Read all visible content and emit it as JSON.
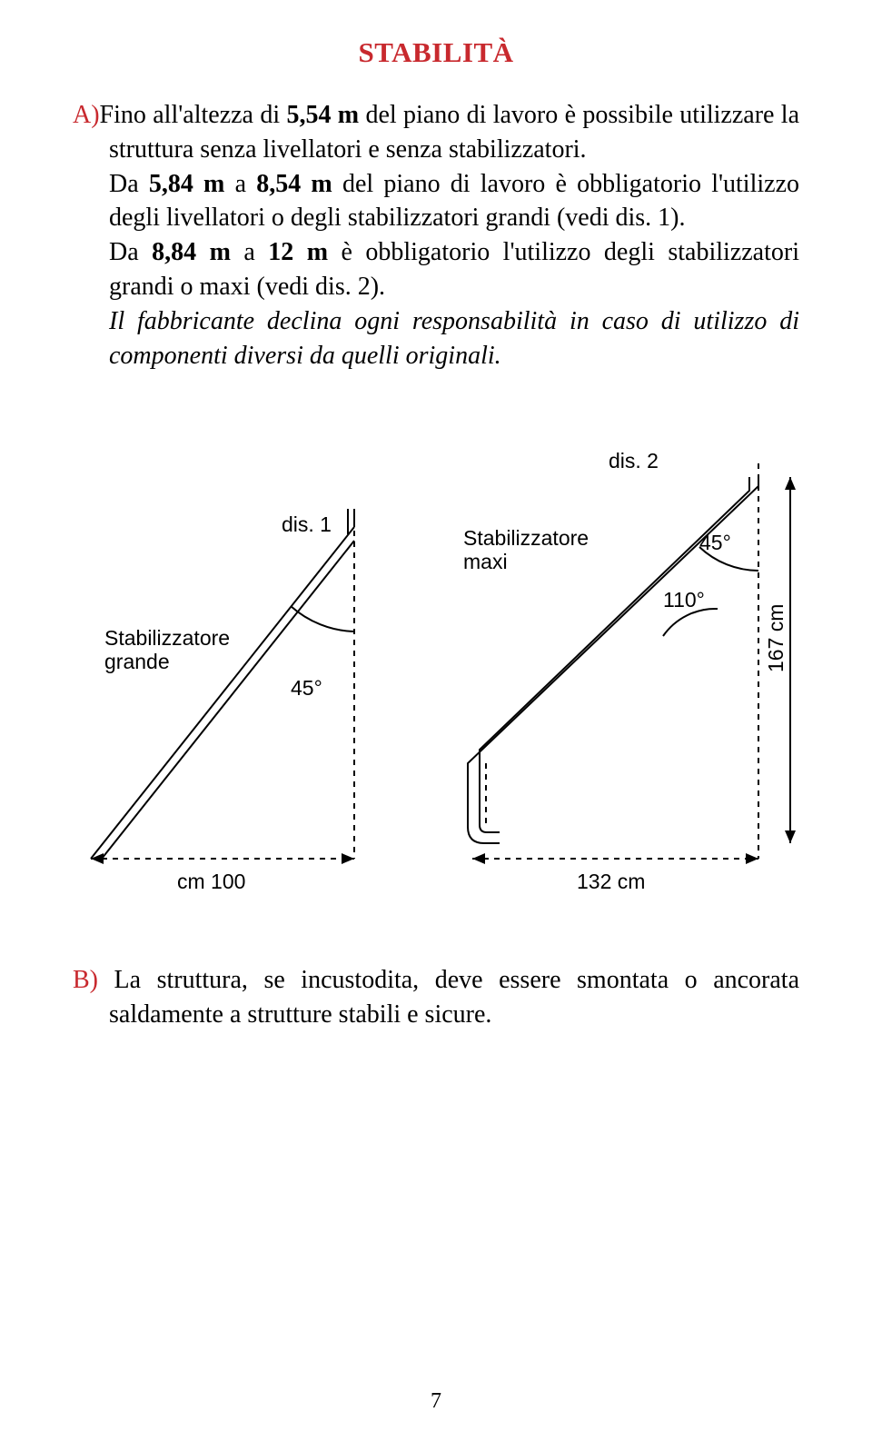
{
  "title": "STABILITÀ",
  "section_a": {
    "marker": "A)",
    "p1_part1": "Fino all'altezza di ",
    "p1_bold1": "5,54 m",
    "p1_part2": " del piano di lavoro è possibile utilizzare la struttura senza livellatori e senza stabilizzatori.",
    "p2_part1": "Da ",
    "p2_bold1": "5,84 m",
    "p2_part2": " a ",
    "p2_bold2": "8,54 m",
    "p2_part3": " del piano di lavoro è obbligatorio l'utilizzo degli livellatori o degli stabilizzatori grandi (vedi dis. 1).",
    "p3_part1": "Da ",
    "p3_bold1": "8,84 m",
    "p3_part2": " a ",
    "p3_bold2": "12 m",
    "p3_part3": " è obbligatorio l'utilizzo degli stabilizzatori grandi o maxi (vedi dis. 2).",
    "p4_italic": "Il fabbricante declina ogni responsabilità in caso di utilizzo di componenti diversi da quelli originali."
  },
  "diagram": {
    "dis1_label": "dis. 1",
    "dis2_label": "dis. 2",
    "stab_grande": "Stabilizzatore\ngrande",
    "stab_maxi": "Stabilizzatore\nmaxi",
    "angle_45_a": "45°",
    "angle_45_b": "45°",
    "angle_110": "110°",
    "dim_100": "cm 100",
    "dim_132": "132 cm",
    "dim_167": "167 cm",
    "stroke": "#000000",
    "dash": "6,6",
    "font_family": "Arial, Helvetica, sans-serif",
    "label_size": 23
  },
  "section_b": {
    "marker": "B)",
    "text": "La struttura, se incustodita, deve essere smontata o ancorata saldamente a strutture stabili e sicure."
  },
  "page_number": "7"
}
